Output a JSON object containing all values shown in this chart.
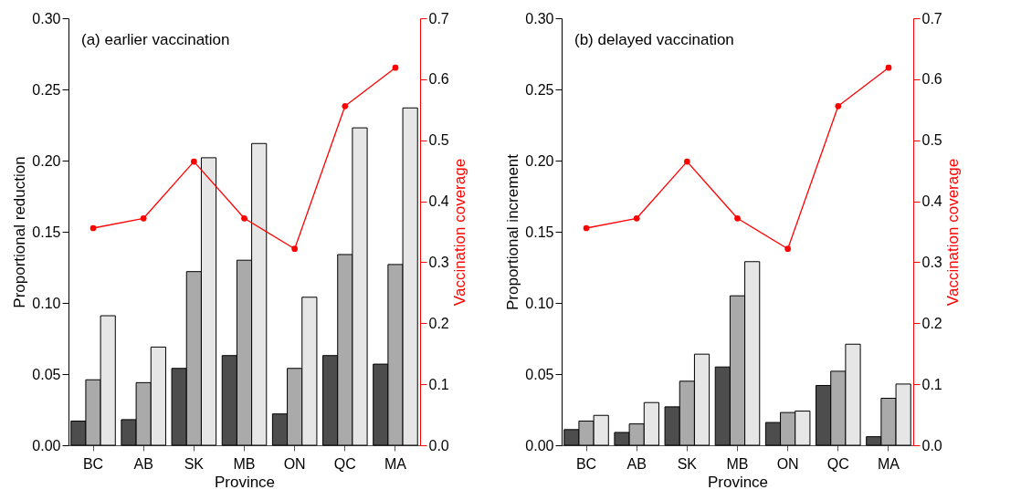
{
  "chart_data": [
    {
      "type": "bar",
      "title": "(a) earlier vaccination",
      "xlabel": "Province",
      "ylabel": "Proportional reduction",
      "y2label": "Vaccination coverage",
      "categories": [
        "BC",
        "AB",
        "SK",
        "MB",
        "ON",
        "QC",
        "MA"
      ],
      "series": [
        {
          "color": "#4d4d4d",
          "values": [
            0.017,
            0.018,
            0.054,
            0.063,
            0.022,
            0.063,
            0.057
          ]
        },
        {
          "color": "#aaaaaa",
          "values": [
            0.046,
            0.044,
            0.122,
            0.13,
            0.054,
            0.134,
            0.127
          ]
        },
        {
          "color": "#e6e6e6",
          "values": [
            0.091,
            0.069,
            0.202,
            0.212,
            0.104,
            0.223,
            0.237
          ]
        },
        {
          "type": "line",
          "axis": "y2",
          "marker": "circle",
          "color": "#ff0000",
          "values": [
            0.356,
            0.372,
            0.465,
            0.372,
            0.322,
            0.556,
            0.619
          ]
        }
      ],
      "ylim": [
        0,
        0.3
      ],
      "yticks": [
        {
          "value": 0,
          "label": "0.00"
        },
        0.05,
        {
          "value": 0.1,
          "label": "0.10"
        },
        0.15,
        {
          "value": 0.2,
          "label": "0.20"
        },
        0.25,
        {
          "value": 0.3,
          "label": "0.30"
        }
      ],
      "y2lim": [
        0,
        0.7
      ],
      "y2ticks": [
        {
          "value": 0,
          "label": "0.0"
        },
        0.1,
        0.2,
        0.3,
        0.4,
        0.5,
        0.6,
        0.7
      ]
    },
    {
      "type": "bar",
      "title": "(b) delayed vaccination",
      "xlabel": "Province",
      "ylabel": "Proportional increment",
      "y2label": "Vaccination coverage",
      "categories": [
        "BC",
        "AB",
        "SK",
        "MB",
        "ON",
        "QC",
        "MA"
      ],
      "series": [
        {
          "color": "#4d4d4d",
          "values": [
            0.011,
            0.009,
            0.027,
            0.055,
            0.016,
            0.042,
            0.006
          ]
        },
        {
          "color": "#aaaaaa",
          "values": [
            0.017,
            0.015,
            0.045,
            0.105,
            0.023,
            0.052,
            0.033
          ]
        },
        {
          "color": "#e6e6e6",
          "values": [
            0.021,
            0.03,
            0.064,
            0.129,
            0.024,
            0.071,
            0.043
          ]
        },
        {
          "type": "line",
          "axis": "y2",
          "marker": "circle",
          "color": "#ff0000",
          "values": [
            0.356,
            0.372,
            0.465,
            0.372,
            0.322,
            0.556,
            0.619
          ]
        }
      ],
      "ylim": [
        0,
        0.3
      ],
      "yticks": [
        {
          "value": 0,
          "label": "0.00"
        },
        0.05,
        {
          "value": 0.1,
          "label": "0.10"
        },
        0.15,
        {
          "value": 0.2,
          "label": "0.20"
        },
        0.25,
        {
          "value": 0.3,
          "label": "0.30"
        }
      ],
      "y2lim": [
        0,
        0.7
      ],
      "y2ticks": [
        {
          "value": 0,
          "label": "0.0"
        },
        0.1,
        0.2,
        0.3,
        0.4,
        0.5,
        0.6,
        0.7
      ]
    }
  ]
}
